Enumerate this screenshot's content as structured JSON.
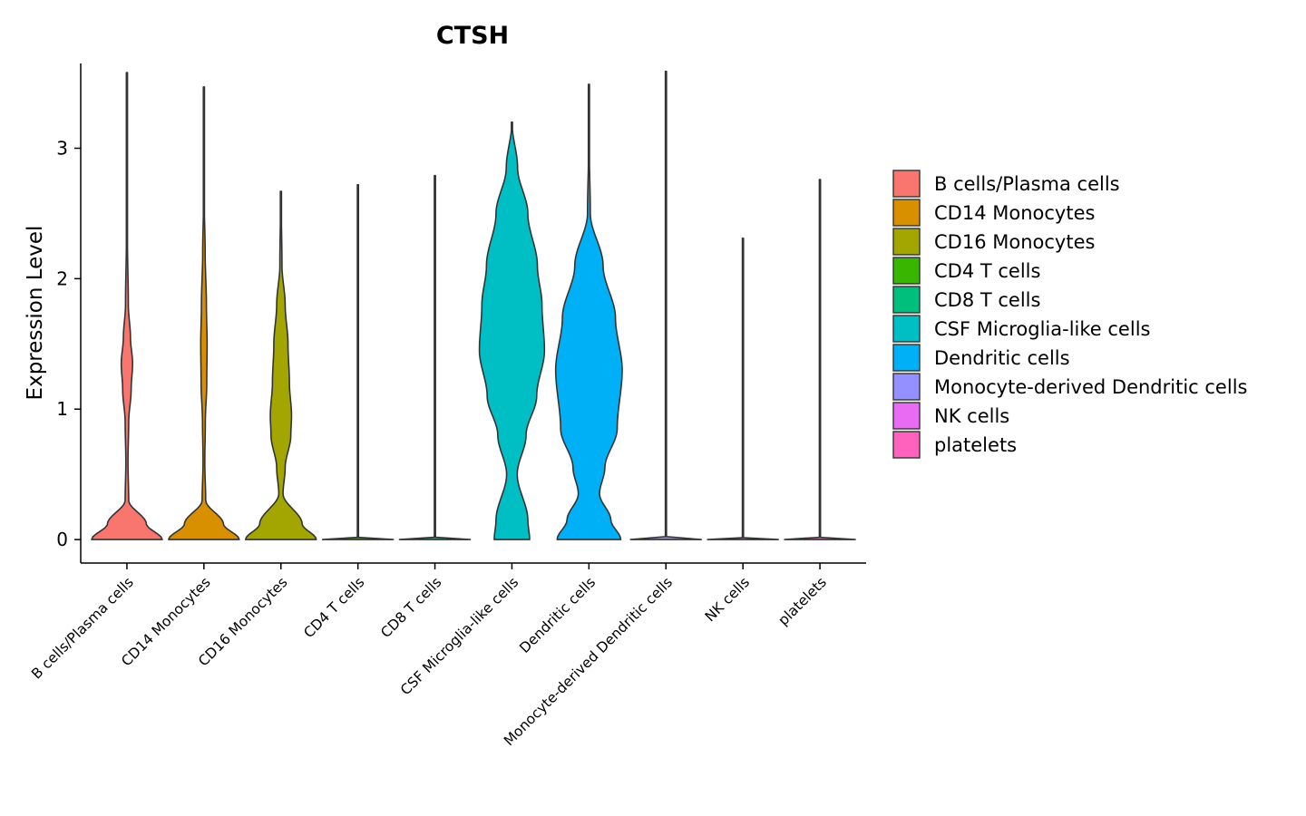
{
  "chart_data": {
    "type": "violin",
    "title": "CTSH",
    "xlabel": "",
    "ylabel": "Expression Level",
    "ylim": [
      -0.18,
      3.65
    ],
    "yticks": [
      0,
      1,
      2,
      3
    ],
    "ytick_labels": [
      "0",
      "1",
      "2",
      "3"
    ],
    "grid": false,
    "legend_position": "right",
    "categories": [
      "B cells/Plasma cells",
      "CD14 Monocytes",
      "CD16 Monocytes",
      "CD4 T cells",
      "CD8 T cells",
      "CSF Microglia-like cells",
      "Dendritic cells",
      "Monocyte-derived Dendritic cells",
      "NK cells",
      "platelets"
    ],
    "colors": [
      "#F8766D",
      "#D89000",
      "#A3A500",
      "#39B600",
      "#00BF7D",
      "#00BFC4",
      "#00B0F6",
      "#9590FF",
      "#E76BF3",
      "#FF62BC"
    ],
    "legend": [
      "B cells/Plasma cells",
      "CD14 Monocytes",
      "CD16 Monocytes",
      "CD4 T cells",
      "CD8 T cells",
      "CSF Microglia-like cells",
      "Dendritic cells",
      "Monocyte-derived Dendritic cells",
      "NK cells",
      "platelets"
    ],
    "series": [
      {
        "name": "B cells/Plasma cells",
        "max": 3.58,
        "profile": [
          [
            0,
            1.0
          ],
          [
            0.12,
            0.55
          ],
          [
            0.3,
            0.05
          ],
          [
            0.6,
            0.03
          ],
          [
            0.9,
            0.05
          ],
          [
            1.15,
            0.12
          ],
          [
            1.35,
            0.16
          ],
          [
            1.55,
            0.1
          ],
          [
            1.8,
            0.04
          ],
          [
            2.3,
            0.015
          ],
          [
            3.58,
            0.004
          ]
        ]
      },
      {
        "name": "CD14 Monocytes",
        "max": 3.47,
        "profile": [
          [
            0,
            1.0
          ],
          [
            0.12,
            0.55
          ],
          [
            0.3,
            0.05
          ],
          [
            0.6,
            0.025
          ],
          [
            0.9,
            0.04
          ],
          [
            1.2,
            0.08
          ],
          [
            1.5,
            0.09
          ],
          [
            1.8,
            0.07
          ],
          [
            2.2,
            0.035
          ],
          [
            2.6,
            0.01
          ],
          [
            3.47,
            0.003
          ]
        ]
      },
      {
        "name": "CD16 Monocytes",
        "max": 2.67,
        "profile": [
          [
            0,
            1.0
          ],
          [
            0.12,
            0.6
          ],
          [
            0.35,
            0.06
          ],
          [
            0.55,
            0.12
          ],
          [
            0.8,
            0.28
          ],
          [
            0.95,
            0.3
          ],
          [
            1.2,
            0.24
          ],
          [
            1.5,
            0.2
          ],
          [
            1.8,
            0.12
          ],
          [
            2.1,
            0.03
          ],
          [
            2.67,
            0.004
          ]
        ]
      },
      {
        "name": "CD4 T cells",
        "max": 2.72,
        "profile": [
          [
            0,
            1.0
          ],
          [
            0.01,
            0.02
          ],
          [
            0.05,
            0.005
          ],
          [
            2.72,
            0.004
          ]
        ]
      },
      {
        "name": "CD8 T cells",
        "max": 2.79,
        "profile": [
          [
            0,
            1.0
          ],
          [
            0.01,
            0.02
          ],
          [
            0.05,
            0.005
          ],
          [
            2.79,
            0.004
          ]
        ]
      },
      {
        "name": "CSF Microglia-like cells",
        "max": 3.2,
        "profile": [
          [
            0,
            0.5
          ],
          [
            0.15,
            0.45
          ],
          [
            0.5,
            0.15
          ],
          [
            0.8,
            0.4
          ],
          [
            1.1,
            0.7
          ],
          [
            1.45,
            0.92
          ],
          [
            1.8,
            0.85
          ],
          [
            2.1,
            0.72
          ],
          [
            2.5,
            0.45
          ],
          [
            2.85,
            0.16
          ],
          [
            3.2,
            0.0
          ]
        ]
      },
      {
        "name": "Dendritic cells",
        "max": 3.49,
        "profile": [
          [
            0,
            0.9
          ],
          [
            0.15,
            0.62
          ],
          [
            0.35,
            0.3
          ],
          [
            0.55,
            0.45
          ],
          [
            0.85,
            0.8
          ],
          [
            1.3,
            0.94
          ],
          [
            1.7,
            0.75
          ],
          [
            2.1,
            0.4
          ],
          [
            2.5,
            0.04
          ],
          [
            3.0,
            0.01
          ],
          [
            3.49,
            0.003
          ]
        ]
      },
      {
        "name": "Monocyte-derived Dendritic cells",
        "max": 3.59,
        "profile": [
          [
            0,
            1.0
          ],
          [
            0.01,
            0.02
          ],
          [
            0.05,
            0.005
          ],
          [
            3.59,
            0.004
          ]
        ]
      },
      {
        "name": "NK cells",
        "max": 2.31,
        "profile": [
          [
            0,
            1.0
          ],
          [
            0.01,
            0.02
          ],
          [
            0.05,
            0.005
          ],
          [
            2.31,
            0.004
          ]
        ]
      },
      {
        "name": "platelets",
        "max": 2.76,
        "profile": [
          [
            0,
            1.0
          ],
          [
            0.01,
            0.02
          ],
          [
            0.05,
            0.005
          ],
          [
            2.76,
            0.004
          ]
        ]
      }
    ]
  }
}
